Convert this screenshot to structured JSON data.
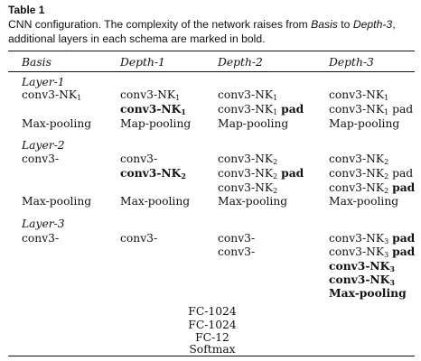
{
  "table": {
    "label": "Table 1",
    "caption_part1": "CNN configuration. The complexity of the network raises from ",
    "caption_basis": "Basis",
    "caption_part2": " to ",
    "caption_depth3": "Depth-3",
    "caption_part3": ", additional layers in each schema are marked in bold.",
    "headers": [
      "Basis",
      "Depth-1",
      "Depth-2",
      "Depth-3"
    ],
    "layer1": {
      "label": "Layer-1",
      "c0r1": "conv3-NK",
      "c0r1_sub": "1",
      "c1r1": "conv3-NK",
      "c1r1_sub": "1",
      "c1r2": "conv3-NK",
      "c1r2_sub": "1",
      "c2r1": "conv3-NK",
      "c2r1_sub": "1",
      "c2r2": "conv3-NK",
      "c2r2_sub": "1",
      "c2r2_pad": "pad",
      "c3r1": "conv3-NK",
      "c3r1_sub": "1",
      "c3r2": "conv3-NK",
      "c3r2_sub": "1",
      "c3r2_pad": "pad",
      "pool_basis": "Max-pooling",
      "pool_d1": "Map-pooling",
      "pool_d2": "Map-pooling",
      "pool_d3": "Map-pooling"
    },
    "layer2": {
      "label": "Layer-2",
      "c0r1": "conv3-",
      "c1r1": "conv3-",
      "c1r2": "conv3-NK",
      "c1r2_sub": "2",
      "c2r1": "conv3-NK",
      "c2r1_sub": "2",
      "c2r2": "conv3-NK",
      "c2r2_sub": "2",
      "c2r2_pad": "pad",
      "c2r3": "conv3-NK",
      "c2r3_sub": "2",
      "c3r1": "conv3-NK",
      "c3r1_sub": "2",
      "c3r2": "conv3-NK",
      "c3r2_sub": "2",
      "c3r2_pad": "pad",
      "c3r3": "conv3-NK",
      "c3r3_sub": "2",
      "c3r3_pad": "pad",
      "pool_basis": "Max-pooling",
      "pool_d1": "Max-pooling",
      "pool_d2": "Max-pooling",
      "pool_d3": "Max-pooling"
    },
    "layer3": {
      "label": "Layer-3",
      "c0r1": "conv3-",
      "c1r1": "conv3-",
      "c2r1": "conv3-",
      "c2r2": "conv3-",
      "c3r1": "conv3-NK",
      "c3r1_sub": "3",
      "c3r1_pad": "pad",
      "c3r2": "conv3-NK",
      "c3r2_sub": "3",
      "c3r2_pad": "pad",
      "c3r3": "conv3-NK",
      "c3r3_sub": "3",
      "c3r4": "conv3-NK",
      "c3r4_sub": "3",
      "c3r5": "Max-pooling"
    },
    "fc_layers": [
      "FC-1024",
      "FC-1024",
      "FC-12",
      "Softmax"
    ]
  }
}
